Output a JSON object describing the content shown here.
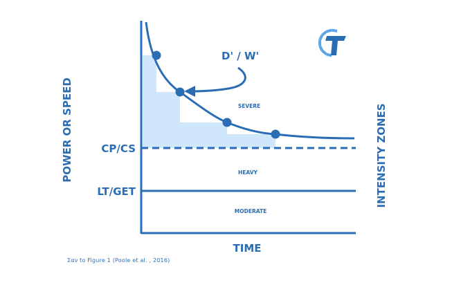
{
  "diagram": {
    "y_axis_label": "POWER OR SPEED",
    "x_axis_label": "TIME",
    "right_label": "INTENSITY ZONES",
    "threshold_labels": {
      "cp": "CP/CS",
      "lt": "LT/GET"
    },
    "zones": {
      "severe": "SEVERE",
      "heavy": "HEAVY",
      "moderate": "MODERATE"
    },
    "annotation": "D' / W'",
    "caption": "Σαν to Figure 1 (Poole et al. , 2016)"
  },
  "colors": {
    "primary": "#2a6db5",
    "fill": "#cfe6fb"
  },
  "icons": {
    "logo": "brand-logo-icon"
  }
}
